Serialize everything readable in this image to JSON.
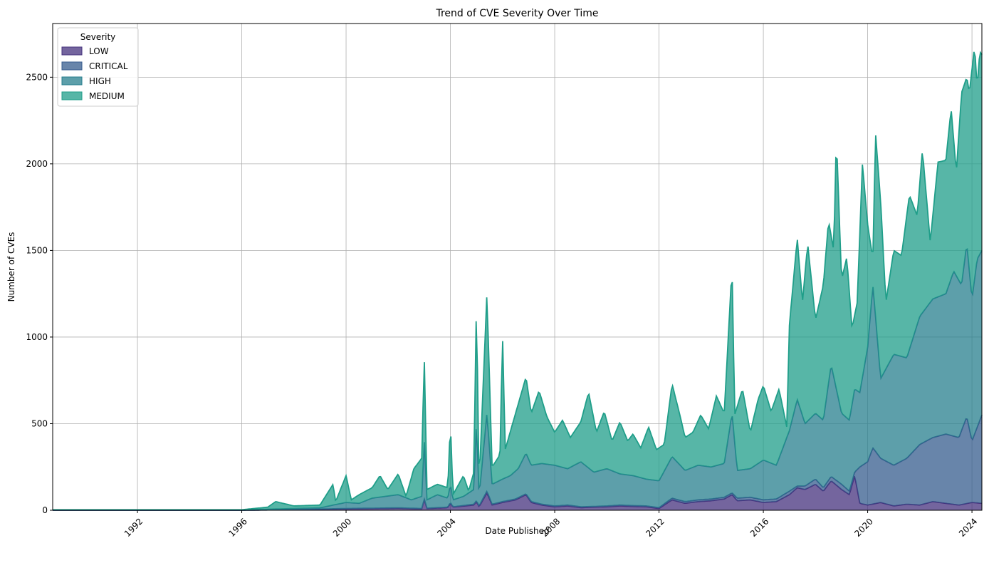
{
  "chart_data": {
    "type": "area",
    "title": "Trend of CVE Severity Over Time",
    "xlabel": "Date Published",
    "ylabel": "Number of CVEs",
    "x_range": [
      "1988-10",
      "2024-05"
    ],
    "xlim": [
      1988.75,
      2024.38
    ],
    "ylim": [
      0,
      2810
    ],
    "x_ticks": [
      1992,
      1996,
      2000,
      2004,
      2008,
      2012,
      2016,
      2020,
      2024
    ],
    "y_ticks": [
      0,
      500,
      1000,
      1500,
      2000,
      2500
    ],
    "grid": true,
    "stacked": true,
    "legend": {
      "title": "Severity",
      "placement": "top-left"
    },
    "series": [
      {
        "name": "LOW",
        "color": "#46327e",
        "points": [
          [
            1988.75,
            0
          ],
          [
            1996,
            0
          ],
          [
            1998,
            3
          ],
          [
            2000,
            8
          ],
          [
            2001,
            10
          ],
          [
            2002,
            12
          ],
          [
            2002.9,
            8
          ],
          [
            2003,
            60
          ],
          [
            2003.1,
            10
          ],
          [
            2003.9,
            15
          ],
          [
            2004,
            40
          ],
          [
            2004.1,
            18
          ],
          [
            2004.9,
            30
          ],
          [
            2005,
            50
          ],
          [
            2005.1,
            20
          ],
          [
            2005.4,
            100
          ],
          [
            2005.6,
            30
          ],
          [
            2006,
            45
          ],
          [
            2006.5,
            60
          ],
          [
            2006.9,
            90
          ],
          [
            2007.1,
            45
          ],
          [
            2007.5,
            30
          ],
          [
            2008,
            20
          ],
          [
            2008.5,
            25
          ],
          [
            2009,
            15
          ],
          [
            2009.5,
            18
          ],
          [
            2010,
            20
          ],
          [
            2010.5,
            25
          ],
          [
            2011,
            22
          ],
          [
            2011.5,
            20
          ],
          [
            2012,
            10
          ],
          [
            2012.5,
            60
          ],
          [
            2013,
            40
          ],
          [
            2013.5,
            50
          ],
          [
            2014,
            55
          ],
          [
            2014.5,
            65
          ],
          [
            2014.8,
            90
          ],
          [
            2015,
            55
          ],
          [
            2015.5,
            60
          ],
          [
            2016,
            45
          ],
          [
            2016.5,
            50
          ],
          [
            2017,
            90
          ],
          [
            2017.3,
            130
          ],
          [
            2017.6,
            120
          ],
          [
            2018,
            150
          ],
          [
            2018.3,
            110
          ],
          [
            2018.6,
            170
          ],
          [
            2019,
            120
          ],
          [
            2019.3,
            90
          ],
          [
            2019.5,
            200
          ],
          [
            2019.7,
            40
          ],
          [
            2020,
            30
          ],
          [
            2020.5,
            45
          ],
          [
            2021,
            25
          ],
          [
            2021.5,
            35
          ],
          [
            2022,
            30
          ],
          [
            2022.5,
            50
          ],
          [
            2023,
            40
          ],
          [
            2023.5,
            30
          ],
          [
            2024,
            45
          ],
          [
            2024.38,
            40
          ]
        ]
      },
      {
        "name": "CRITICAL",
        "color": "#365c8d",
        "points": [
          [
            1988.75,
            0
          ],
          [
            1996,
            0
          ],
          [
            1998,
            4
          ],
          [
            2000,
            10
          ],
          [
            2001,
            12
          ],
          [
            2002,
            14
          ],
          [
            2002.9,
            10
          ],
          [
            2003,
            65
          ],
          [
            2003.1,
            12
          ],
          [
            2003.9,
            18
          ],
          [
            2004,
            45
          ],
          [
            2004.1,
            20
          ],
          [
            2004.9,
            35
          ],
          [
            2005,
            55
          ],
          [
            2005.1,
            25
          ],
          [
            2005.4,
            110
          ],
          [
            2005.6,
            35
          ],
          [
            2006,
            50
          ],
          [
            2006.5,
            65
          ],
          [
            2006.9,
            95
          ],
          [
            2007.1,
            50
          ],
          [
            2007.5,
            35
          ],
          [
            2008,
            25
          ],
          [
            2008.5,
            30
          ],
          [
            2009,
            20
          ],
          [
            2009.5,
            22
          ],
          [
            2010,
            25
          ],
          [
            2010.5,
            30
          ],
          [
            2011,
            27
          ],
          [
            2011.5,
            25
          ],
          [
            2012,
            15
          ],
          [
            2012.5,
            70
          ],
          [
            2013,
            50
          ],
          [
            2013.5,
            60
          ],
          [
            2014,
            65
          ],
          [
            2014.5,
            75
          ],
          [
            2014.8,
            100
          ],
          [
            2015,
            70
          ],
          [
            2015.5,
            75
          ],
          [
            2016,
            60
          ],
          [
            2016.5,
            65
          ],
          [
            2017,
            110
          ],
          [
            2017.3,
            140
          ],
          [
            2017.6,
            140
          ],
          [
            2018,
            180
          ],
          [
            2018.3,
            130
          ],
          [
            2018.6,
            195
          ],
          [
            2019,
            150
          ],
          [
            2019.3,
            110
          ],
          [
            2019.5,
            220
          ],
          [
            2019.7,
            250
          ],
          [
            2020,
            280
          ],
          [
            2020.2,
            360
          ],
          [
            2020.5,
            300
          ],
          [
            2021,
            260
          ],
          [
            2021.5,
            300
          ],
          [
            2022,
            380
          ],
          [
            2022.5,
            420
          ],
          [
            2023,
            440
          ],
          [
            2023.5,
            420
          ],
          [
            2023.8,
            540
          ],
          [
            2024,
            400
          ],
          [
            2024.38,
            550
          ]
        ]
      },
      {
        "name": "HIGH",
        "color": "#277f8e",
        "points": [
          [
            1988.75,
            2
          ],
          [
            1996,
            2
          ],
          [
            1997,
            6
          ],
          [
            1998,
            10
          ],
          [
            1999,
            14
          ],
          [
            1999.5,
            30
          ],
          [
            2000,
            45
          ],
          [
            2000.5,
            40
          ],
          [
            2001,
            70
          ],
          [
            2001.5,
            80
          ],
          [
            2002,
            90
          ],
          [
            2002.5,
            60
          ],
          [
            2002.9,
            80
          ],
          [
            2003,
            400
          ],
          [
            2003.1,
            60
          ],
          [
            2003.5,
            90
          ],
          [
            2003.9,
            70
          ],
          [
            2004,
            150
          ],
          [
            2004.1,
            60
          ],
          [
            2004.5,
            80
          ],
          [
            2004.9,
            120
          ],
          [
            2005,
            520
          ],
          [
            2005.1,
            80
          ],
          [
            2005.4,
            560
          ],
          [
            2005.6,
            150
          ],
          [
            2006,
            180
          ],
          [
            2006.3,
            200
          ],
          [
            2006.6,
            240
          ],
          [
            2006.9,
            330
          ],
          [
            2007.1,
            260
          ],
          [
            2007.5,
            270
          ],
          [
            2008,
            260
          ],
          [
            2008.5,
            240
          ],
          [
            2009,
            280
          ],
          [
            2009.5,
            220
          ],
          [
            2010,
            240
          ],
          [
            2010.5,
            210
          ],
          [
            2011,
            200
          ],
          [
            2011.5,
            180
          ],
          [
            2012,
            170
          ],
          [
            2012.5,
            310
          ],
          [
            2013,
            230
          ],
          [
            2013.5,
            260
          ],
          [
            2014,
            250
          ],
          [
            2014.5,
            270
          ],
          [
            2014.8,
            560
          ],
          [
            2015,
            230
          ],
          [
            2015.5,
            240
          ],
          [
            2016,
            290
          ],
          [
            2016.5,
            260
          ],
          [
            2017,
            460
          ],
          [
            2017.3,
            640
          ],
          [
            2017.6,
            500
          ],
          [
            2018,
            560
          ],
          [
            2018.3,
            520
          ],
          [
            2018.6,
            840
          ],
          [
            2019,
            560
          ],
          [
            2019.3,
            520
          ],
          [
            2019.5,
            700
          ],
          [
            2019.7,
            680
          ],
          [
            2020,
            940
          ],
          [
            2020.2,
            1300
          ],
          [
            2020.5,
            760
          ],
          [
            2021,
            900
          ],
          [
            2021.5,
            880
          ],
          [
            2022,
            1120
          ],
          [
            2022.5,
            1220
          ],
          [
            2023,
            1250
          ],
          [
            2023.3,
            1380
          ],
          [
            2023.6,
            1300
          ],
          [
            2023.8,
            1540
          ],
          [
            2024,
            1220
          ],
          [
            2024.2,
            1450
          ],
          [
            2024.38,
            1500
          ]
        ]
      },
      {
        "name": "MEDIUM",
        "color": "#1f9e89",
        "points": [
          [
            1988.75,
            3
          ],
          [
            1996,
            3
          ],
          [
            1997,
            18
          ],
          [
            1997.3,
            50
          ],
          [
            1998,
            25
          ],
          [
            1999,
            30
          ],
          [
            1999.5,
            150
          ],
          [
            1999.6,
            50
          ],
          [
            2000,
            200
          ],
          [
            2000.2,
            60
          ],
          [
            2000.5,
            90
          ],
          [
            2001,
            130
          ],
          [
            2001.3,
            200
          ],
          [
            2001.6,
            120
          ],
          [
            2002,
            210
          ],
          [
            2002.3,
            80
          ],
          [
            2002.6,
            240
          ],
          [
            2002.9,
            300
          ],
          [
            2003,
            870
          ],
          [
            2003.1,
            120
          ],
          [
            2003.5,
            150
          ],
          [
            2003.9,
            130
          ],
          [
            2004,
            510
          ],
          [
            2004.1,
            90
          ],
          [
            2004.5,
            200
          ],
          [
            2004.7,
            110
          ],
          [
            2004.9,
            220
          ],
          [
            2005,
            1220
          ],
          [
            2005.1,
            150
          ],
          [
            2005.4,
            1250
          ],
          [
            2005.6,
            250
          ],
          [
            2005.9,
            320
          ],
          [
            2006,
            1010
          ],
          [
            2006.1,
            350
          ],
          [
            2006.5,
            560
          ],
          [
            2006.9,
            770
          ],
          [
            2007.1,
            560
          ],
          [
            2007.4,
            690
          ],
          [
            2007.7,
            540
          ],
          [
            2008,
            450
          ],
          [
            2008.3,
            520
          ],
          [
            2008.6,
            420
          ],
          [
            2009,
            510
          ],
          [
            2009.3,
            680
          ],
          [
            2009.6,
            450
          ],
          [
            2009.9,
            570
          ],
          [
            2010.2,
            400
          ],
          [
            2010.5,
            510
          ],
          [
            2010.8,
            400
          ],
          [
            2011,
            440
          ],
          [
            2011.3,
            360
          ],
          [
            2011.6,
            480
          ],
          [
            2011.9,
            350
          ],
          [
            2012.2,
            380
          ],
          [
            2012.5,
            730
          ],
          [
            2012.8,
            550
          ],
          [
            2013,
            420
          ],
          [
            2013.3,
            450
          ],
          [
            2013.6,
            550
          ],
          [
            2013.9,
            470
          ],
          [
            2014.2,
            660
          ],
          [
            2014.5,
            560
          ],
          [
            2014.8,
            1410
          ],
          [
            2014.9,
            550
          ],
          [
            2015.2,
            700
          ],
          [
            2015.5,
            450
          ],
          [
            2015.8,
            640
          ],
          [
            2016,
            720
          ],
          [
            2016.3,
            570
          ],
          [
            2016.6,
            700
          ],
          [
            2016.9,
            480
          ],
          [
            2017,
            1070
          ],
          [
            2017.3,
            1570
          ],
          [
            2017.5,
            1200
          ],
          [
            2017.7,
            1540
          ],
          [
            2018,
            1100
          ],
          [
            2018.3,
            1300
          ],
          [
            2018.5,
            1670
          ],
          [
            2018.7,
            1500
          ],
          [
            2018.8,
            2160
          ],
          [
            2019,
            1330
          ],
          [
            2019.2,
            1460
          ],
          [
            2019.4,
            1050
          ],
          [
            2019.6,
            1200
          ],
          [
            2019.8,
            2000
          ],
          [
            2020,
            1650
          ],
          [
            2020.2,
            1450
          ],
          [
            2020.3,
            2180
          ],
          [
            2020.5,
            1780
          ],
          [
            2020.7,
            1200
          ],
          [
            2021,
            1500
          ],
          [
            2021.3,
            1470
          ],
          [
            2021.6,
            1820
          ],
          [
            2021.9,
            1700
          ],
          [
            2022.1,
            2080
          ],
          [
            2022.4,
            1550
          ],
          [
            2022.7,
            2010
          ],
          [
            2023,
            2020
          ],
          [
            2023.2,
            2320
          ],
          [
            2023.4,
            1950
          ],
          [
            2023.6,
            2410
          ],
          [
            2023.8,
            2500
          ],
          [
            2023.9,
            2410
          ],
          [
            2024.1,
            2680
          ],
          [
            2024.2,
            2440
          ],
          [
            2024.3,
            2650
          ],
          [
            2024.38,
            2630
          ]
        ]
      }
    ]
  }
}
